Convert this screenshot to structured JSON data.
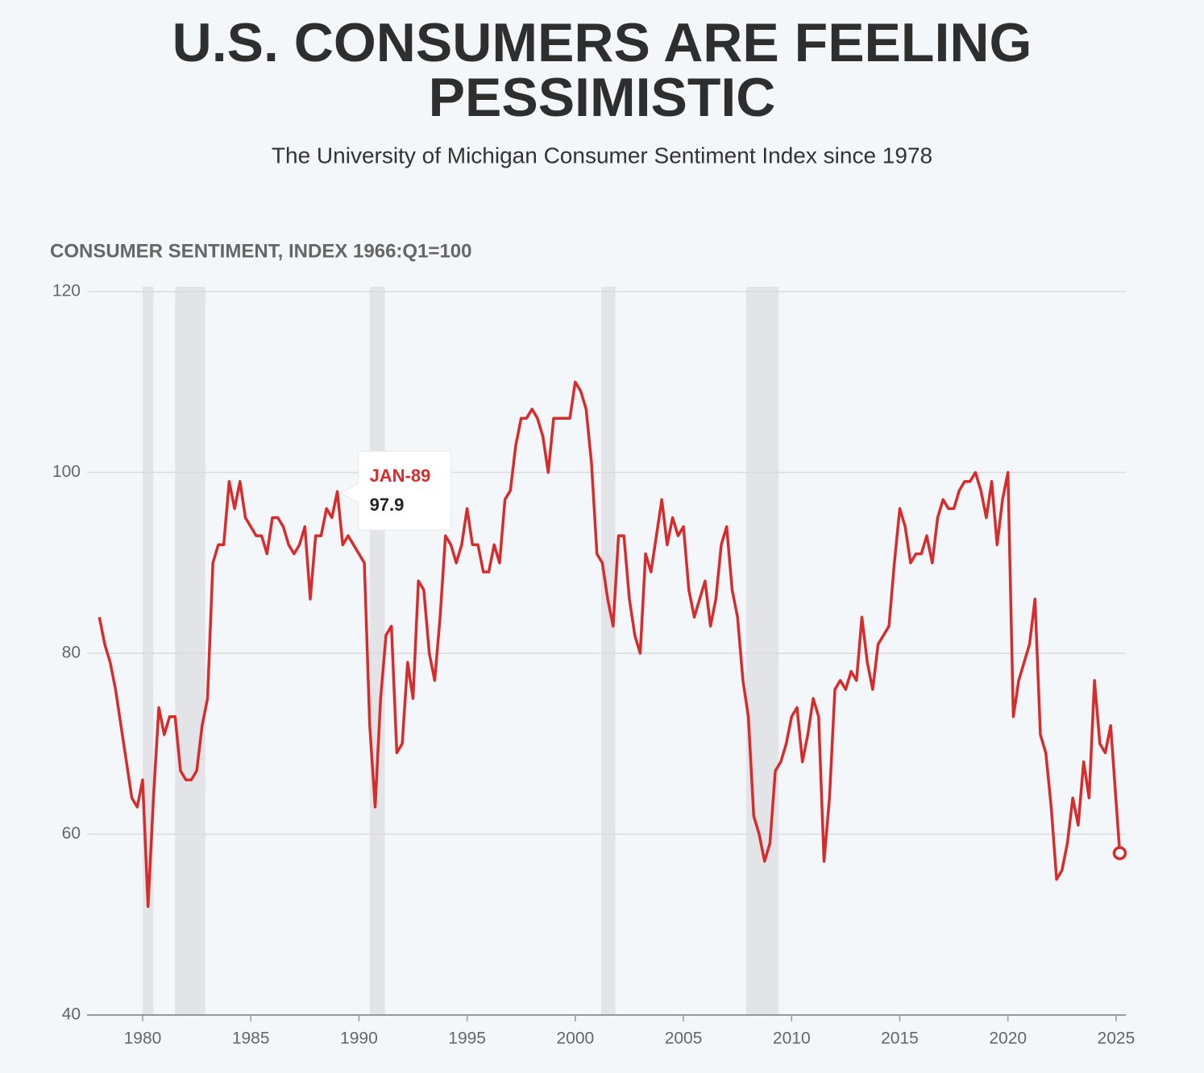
{
  "chart_data": {
    "type": "line",
    "title": [
      "U.S. CONSUMERS ARE FEELING",
      "PESSIMISTIC"
    ],
    "subtitle": "The University of Michigan Consumer Sentiment Index since 1978",
    "y_axis_label": "CONSUMER SENTIMENT, INDEX 1966:Q1=100",
    "xlim": [
      1977.43,
      2025.45
    ],
    "xticks": [
      1980,
      1985,
      1990,
      1995,
      2000,
      2005,
      2010,
      2015,
      2020,
      2025
    ],
    "ylim": [
      40,
      120
    ],
    "yticks": [
      40,
      60,
      80,
      100,
      120
    ],
    "grid": true,
    "recessions": [
      [
        1980.0,
        1980.5
      ],
      [
        1981.5,
        1982.9
      ],
      [
        1990.5,
        1991.2
      ],
      [
        2001.2,
        2001.85
      ],
      [
        2007.9,
        2009.4
      ]
    ],
    "tooltip": {
      "label": "JAN-89",
      "x": 1989.0,
      "value": 97.9
    },
    "x": [
      1978,
      1978.25,
      1978.5,
      1978.75,
      1979,
      1979.25,
      1979.5,
      1979.75,
      1980,
      1980.25,
      1980.5,
      1980.75,
      1981,
      1981.25,
      1981.5,
      1981.75,
      1982,
      1982.25,
      1982.5,
      1982.75,
      1983,
      1983.25,
      1983.5,
      1983.75,
      1984,
      1984.25,
      1984.5,
      1984.75,
      1985,
      1985.25,
      1985.5,
      1985.75,
      1986,
      1986.25,
      1986.5,
      1986.75,
      1987,
      1987.25,
      1987.5,
      1987.75,
      1988,
      1988.25,
      1988.5,
      1988.75,
      1989,
      1989.25,
      1989.5,
      1989.75,
      1990,
      1990.25,
      1990.5,
      1990.75,
      1991,
      1991.25,
      1991.5,
      1991.75,
      1992,
      1992.25,
      1992.5,
      1992.75,
      1993,
      1993.25,
      1993.5,
      1993.75,
      1994,
      1994.25,
      1994.5,
      1994.75,
      1995,
      1995.25,
      1995.5,
      1995.75,
      1996,
      1996.25,
      1996.5,
      1996.75,
      1997,
      1997.25,
      1997.5,
      1997.75,
      1998,
      1998.25,
      1998.5,
      1998.75,
      1999,
      1999.25,
      1999.5,
      1999.75,
      2000,
      2000.25,
      2000.5,
      2000.75,
      2001,
      2001.25,
      2001.5,
      2001.75,
      2002,
      2002.25,
      2002.5,
      2002.75,
      2003,
      2003.25,
      2003.5,
      2003.75,
      2004,
      2004.25,
      2004.5,
      2004.75,
      2005,
      2005.25,
      2005.5,
      2005.75,
      2006,
      2006.25,
      2006.5,
      2006.75,
      2007,
      2007.25,
      2007.5,
      2007.75,
      2008,
      2008.25,
      2008.5,
      2008.75,
      2009,
      2009.25,
      2009.5,
      2009.75,
      2010,
      2010.25,
      2010.5,
      2010.75,
      2011,
      2011.25,
      2011.5,
      2011.75,
      2012,
      2012.25,
      2012.5,
      2012.75,
      2013,
      2013.25,
      2013.5,
      2013.75,
      2014,
      2014.25,
      2014.5,
      2014.75,
      2015,
      2015.25,
      2015.5,
      2015.75,
      2016,
      2016.25,
      2016.5,
      2016.75,
      2017,
      2017.25,
      2017.5,
      2017.75,
      2018,
      2018.25,
      2018.5,
      2018.75,
      2019,
      2019.25,
      2019.5,
      2019.75,
      2020,
      2020.25,
      2020.5,
      2020.75,
      2021,
      2021.25,
      2021.5,
      2021.75,
      2022,
      2022.25,
      2022.5,
      2022.75,
      2023,
      2023.25,
      2023.5,
      2023.75,
      2024,
      2024.25,
      2024.5,
      2024.75,
      2025.17
    ],
    "series": [
      {
        "color": "#d62c2c",
        "values": [
          84,
          81,
          79,
          76,
          72,
          68,
          64,
          63,
          66,
          52,
          64,
          74,
          71,
          73,
          73,
          67,
          66,
          66,
          67,
          72,
          75,
          90,
          92,
          92,
          99,
          96,
          99,
          95,
          94,
          93,
          93,
          91,
          95,
          95,
          94,
          92,
          91,
          92,
          94,
          86,
          93,
          93,
          96,
          95,
          97.9,
          92,
          93,
          92,
          91,
          90,
          72,
          63,
          75,
          82,
          83,
          69,
          70,
          79,
          75,
          88,
          87,
          80,
          77,
          84,
          93,
          92,
          90,
          92,
          96,
          92,
          92,
          89,
          89,
          92,
          90,
          97,
          98,
          103,
          106,
          106,
          107,
          106,
          104,
          100,
          106,
          106,
          106,
          106,
          110,
          109,
          107,
          101,
          91,
          90,
          86,
          83,
          93,
          93,
          86,
          82,
          80,
          91,
          89,
          93,
          97,
          92,
          95,
          93,
          94,
          87,
          84,
          86,
          88,
          83,
          86,
          92,
          94,
          87,
          84,
          77,
          73,
          62,
          60,
          57,
          59,
          67,
          68,
          70,
          73,
          74,
          68,
          71,
          75,
          73,
          57,
          64,
          76,
          77,
          76,
          78,
          77,
          84,
          79,
          76,
          81,
          82,
          83,
          90,
          96,
          94,
          90,
          91,
          91,
          93,
          90,
          95,
          97,
          96,
          96,
          98,
          99,
          99,
          100,
          98,
          95,
          99,
          92,
          97,
          100,
          73,
          77,
          79,
          81,
          86,
          71,
          69,
          63,
          55,
          56,
          59,
          64,
          61,
          68,
          64,
          77,
          70,
          69,
          72,
          57.9
        ]
      }
    ]
  }
}
